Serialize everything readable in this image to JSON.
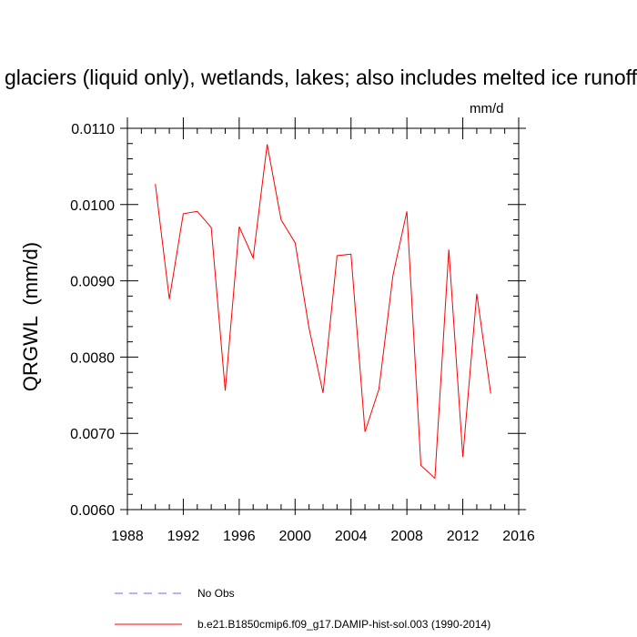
{
  "title": "Runoff from glaciers (liquid only), wetlands, lakes; also includes melted ice runoff",
  "units_label": "mm/d",
  "legend": [
    {
      "label": "No Obs",
      "color": "#6a6aff",
      "style": "dashed"
    },
    {
      "label": "b.e21.B1850cmip6.f09_g17.DAMIP-hist-sol.003 (1990-2014)",
      "color": "#ff0000",
      "style": "solid"
    }
  ],
  "chart_data": {
    "type": "line",
    "title": "Runoff from glaciers (liquid only), wetlands, lakes; also includes melted ice runoff",
    "xlabel": "",
    "ylabel": "QRGWL  (mm/d)",
    "xlim": [
      1988,
      2016
    ],
    "ylim": [
      0.006,
      0.011
    ],
    "xticks": [
      1988,
      1992,
      1996,
      2000,
      2004,
      2008,
      2012,
      2016
    ],
    "xtick_labels": [
      "1988",
      "1992",
      "1996",
      "2000",
      "2004",
      "2008",
      "2012",
      "2016"
    ],
    "yticks": [
      0.006,
      0.007,
      0.008,
      0.009,
      0.01,
      0.011
    ],
    "ytick_labels": [
      "0.0060",
      "0.0070",
      "0.0080",
      "0.0090",
      "0.0100",
      "0.0110"
    ],
    "grid": false,
    "legend_position": "bottom",
    "series": [
      {
        "name": "b.e21.B1850cmip6.f09_g17.DAMIP-hist-sol.003 (1990-2014)",
        "color": "#ff0000",
        "x": [
          1990,
          1991,
          1992,
          1993,
          1994,
          1995,
          1996,
          1997,
          1998,
          1999,
          2000,
          2001,
          2002,
          2003,
          2004,
          2005,
          2006,
          2007,
          2008,
          2009,
          2010,
          2011,
          2012,
          2013,
          2014
        ],
        "y": [
          0.01027,
          0.00876,
          0.00988,
          0.00991,
          0.0097,
          0.00756,
          0.00971,
          0.0093,
          0.01079,
          0.0098,
          0.0095,
          0.00838,
          0.00753,
          0.00933,
          0.00935,
          0.00702,
          0.00758,
          0.00907,
          0.00991,
          0.00658,
          0.00641,
          0.00941,
          0.00669,
          0.00883,
          0.00752
        ]
      }
    ]
  }
}
